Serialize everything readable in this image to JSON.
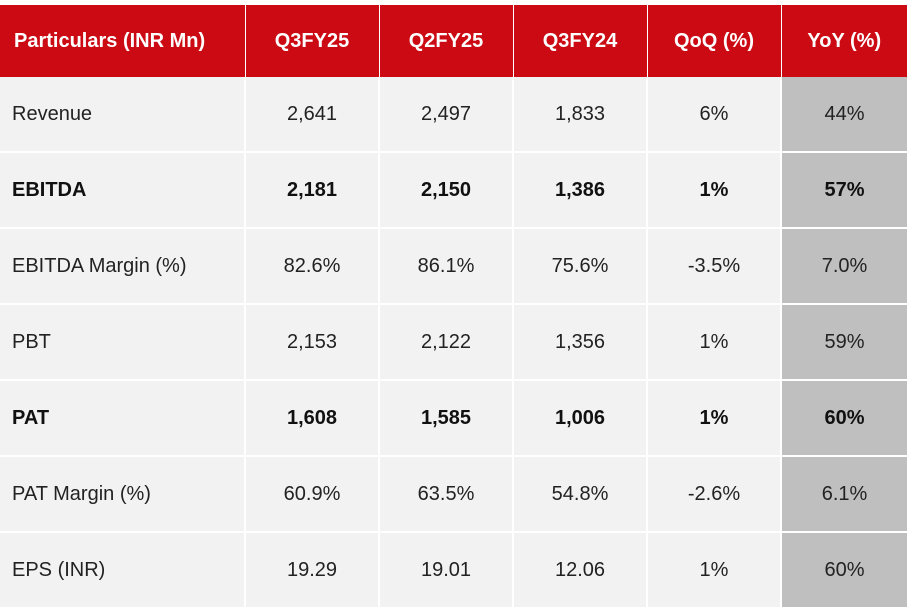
{
  "table": {
    "headers": [
      "Particulars (INR Mn)",
      "Q3FY25",
      "Q2FY25",
      "Q3FY24",
      "QoQ (%)",
      "YoY (%)"
    ],
    "rows": [
      {
        "label": "Revenue",
        "q3fy25": "2,641",
        "q2fy25": "2,497",
        "q3fy24": "1,833",
        "qoq": "6%",
        "yoy": "44%",
        "bold": false
      },
      {
        "label": "EBITDA",
        "q3fy25": "2,181",
        "q2fy25": "2,150",
        "q3fy24": "1,386",
        "qoq": "1%",
        "yoy": "57%",
        "bold": true
      },
      {
        "label": "EBITDA Margin (%)",
        "q3fy25": "82.6%",
        "q2fy25": "86.1%",
        "q3fy24": "75.6%",
        "qoq": "-3.5%",
        "yoy": "7.0%",
        "bold": false
      },
      {
        "label": "PBT",
        "q3fy25": "2,153",
        "q2fy25": "2,122",
        "q3fy24": "1,356",
        "qoq": "1%",
        "yoy": "59%",
        "bold": false
      },
      {
        "label": "PAT",
        "q3fy25": "1,608",
        "q2fy25": "1,585",
        "q3fy24": "1,006",
        "qoq": "1%",
        "yoy": "60%",
        "bold": true
      },
      {
        "label": "PAT Margin (%)",
        "q3fy25": "60.9%",
        "q2fy25": "63.5%",
        "q3fy24": "54.8%",
        "qoq": "-2.6%",
        "yoy": "6.1%",
        "bold": false
      },
      {
        "label": "EPS (INR)",
        "q3fy25": "19.29",
        "q2fy25": "19.01",
        "q3fy24": "12.06",
        "qoq": "1%",
        "yoy": "60%",
        "bold": false
      }
    ]
  },
  "colors": {
    "header_bg": "#cc0a14",
    "header_text": "#ffffff",
    "row_bg": "#f2f2f2",
    "yoy_column_bg": "#bfbfbf"
  }
}
